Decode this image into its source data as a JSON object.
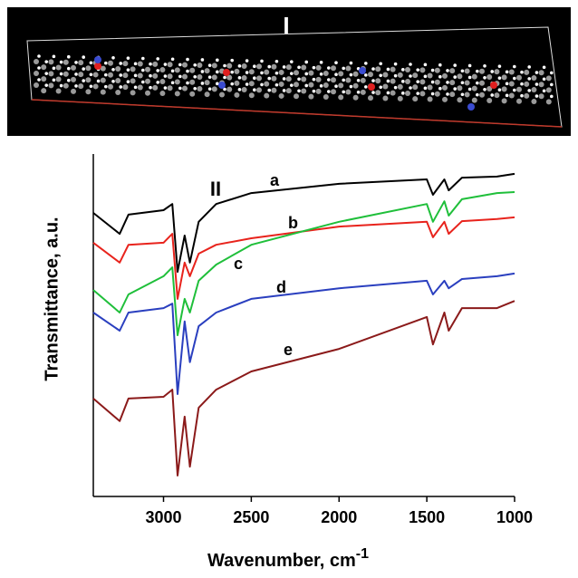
{
  "panel_labels": [
    "I",
    "II"
  ],
  "chart_data": {
    "type": "line",
    "y_label": "Transmittance, a.u.",
    "x_label": "Wavenumber, cm",
    "x_label_superscript": "-1",
    "x": [
      3400,
      3250,
      3200,
      3000,
      2950,
      2920,
      2880,
      2850,
      2800,
      2700,
      2500,
      2000,
      1500,
      1465,
      1400,
      1375,
      1300,
      1100,
      1000
    ],
    "xlim": [
      3400,
      1000
    ],
    "xticks": [
      3000,
      2500,
      2000,
      1500,
      1000
    ],
    "ylim": [
      0,
      100
    ],
    "series": [
      {
        "name": "a",
        "color": "#000000",
        "values": [
          82.8,
          76.7,
          82.3,
          83.6,
          85.4,
          65.6,
          76.2,
          68.3,
          80.2,
          85.4,
          88.6,
          91.3,
          92.6,
          88.1,
          92.6,
          89.4,
          93.1,
          93.4,
          94.2
        ]
      },
      {
        "name": "b",
        "color": "#e8231c",
        "values": [
          74.1,
          68.3,
          73.5,
          74.1,
          76.7,
          57.7,
          68.3,
          64.3,
          70.9,
          73.5,
          75.4,
          78.8,
          80.2,
          75.7,
          80.2,
          76.7,
          80.4,
          81.0,
          81.5
        ]
      },
      {
        "name": "c",
        "color": "#1fbf3a",
        "values": [
          60.3,
          53.7,
          59.0,
          64.3,
          66.9,
          47.1,
          57.7,
          53.7,
          63.0,
          67.7,
          73.5,
          80.2,
          85.4,
          80.2,
          86.2,
          82.0,
          86.8,
          88.6,
          88.9
        ]
      },
      {
        "name": "d",
        "color": "#2a3fbf",
        "values": [
          53.7,
          48.4,
          53.7,
          55.0,
          56.3,
          29.9,
          51.1,
          39.2,
          49.7,
          53.7,
          57.7,
          60.8,
          63.0,
          59.0,
          63.0,
          60.8,
          63.5,
          64.3,
          65.1
        ]
      },
      {
        "name": "e",
        "color": "#8b1a1a",
        "values": [
          28.6,
          22.0,
          28.6,
          29.1,
          31.2,
          6.1,
          23.3,
          8.7,
          25.9,
          31.2,
          36.5,
          43.1,
          52.4,
          44.4,
          53.7,
          48.4,
          55.0,
          55.0,
          57.1
        ]
      }
    ]
  }
}
